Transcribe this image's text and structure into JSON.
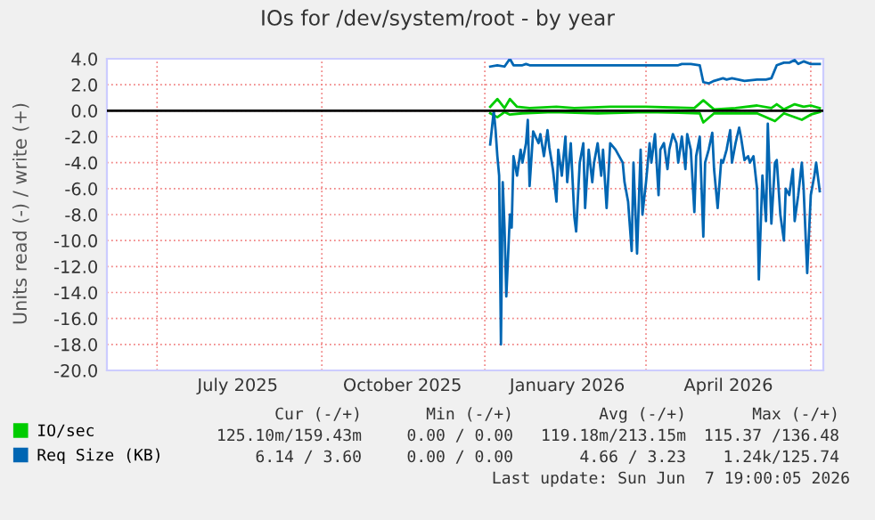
{
  "chart_data": {
    "type": "line",
    "title": "IOs for /dev/system/root - by year",
    "ylabel": "Units read (-) / write (+)",
    "xlim": [
      "2025-05-04",
      "2026-06-08"
    ],
    "xticks": [
      {
        "value": "2025-06-01",
        "label": null
      },
      {
        "value": "2025-07-16",
        "label": "July 2025"
      },
      {
        "value": "2025-09-01",
        "label": null
      },
      {
        "value": "2025-10-16",
        "label": "October 2025"
      },
      {
        "value": "2025-12-01",
        "label": null
      },
      {
        "value": "2026-01-16",
        "label": "January 2026"
      },
      {
        "value": "2026-03-01",
        "label": null
      },
      {
        "value": "2026-04-16",
        "label": "April 2026"
      },
      {
        "value": "2026-06-01",
        "label": null
      }
    ],
    "ylim": [
      -20,
      4
    ],
    "yticks": [
      {
        "value": 4,
        "label": "4.0"
      },
      {
        "value": 2,
        "label": "2.0"
      },
      {
        "value": 0,
        "label": "0.0"
      },
      {
        "value": -2,
        "label": "-2.0"
      },
      {
        "value": -4,
        "label": "-4.0"
      },
      {
        "value": -6,
        "label": "-6.0"
      },
      {
        "value": -8,
        "label": "-8.0"
      },
      {
        "value": -10,
        "label": "-10.0"
      },
      {
        "value": -12,
        "label": "-12.0"
      },
      {
        "value": -14,
        "label": "-14.0"
      },
      {
        "value": -16,
        "label": "-16.0"
      },
      {
        "value": -18,
        "label": "-18.0"
      },
      {
        "value": -20,
        "label": "-20.0"
      }
    ],
    "grid": true,
    "legend": "bottom",
    "marker": "none",
    "line_style": "solid",
    "ref_lines": [
      {
        "axis": "y",
        "value": 0,
        "label": null,
        "color": "#000000"
      }
    ],
    "series": [
      {
        "name": "IO/sec",
        "color": "#00cc00",
        "x": [
          "2025-12-04",
          "2025-12-08",
          "2025-12-12",
          "2025-12-15",
          "2025-12-19",
          "2025-12-26",
          "2026-01-10",
          "2026-01-20",
          "2026-02-09",
          "2026-03-01",
          "2026-03-28",
          "2026-04-02",
          "2026-04-08",
          "2026-04-20",
          "2026-05-02",
          "2026-05-10",
          "2026-05-13",
          "2026-05-17",
          "2026-05-23",
          "2026-05-28",
          "2026-06-01",
          "2026-06-06"
        ],
        "values": [
          0.3,
          0.9,
          0.2,
          0.9,
          0.3,
          0.2,
          0.3,
          0.2,
          0.3,
          0.3,
          0.2,
          0.8,
          0.1,
          0.2,
          0.4,
          0.2,
          0.5,
          0.1,
          0.5,
          0.3,
          0.4,
          0.2
        ]
      },
      {
        "color": "#00cc00",
        "x": [
          "2025-12-04",
          "2025-12-08",
          "2025-12-12",
          "2025-12-15",
          "2025-12-22",
          "2026-01-08",
          "2026-02-02",
          "2026-03-01",
          "2026-03-31",
          "2026-04-02",
          "2026-04-08",
          "2026-05-02",
          "2026-05-12",
          "2026-05-17",
          "2026-05-27",
          "2026-06-01",
          "2026-06-06"
        ],
        "values": [
          -0.2,
          -0.5,
          -0.1,
          -0.3,
          -0.2,
          -0.1,
          -0.2,
          -0.1,
          -0.2,
          -0.9,
          -0.2,
          -0.2,
          -0.8,
          -0.2,
          -0.7,
          -0.3,
          -0.1
        ]
      },
      {
        "name": "Req Size (KB)",
        "color": "#0066b3",
        "x": [
          "2025-12-04",
          "2025-12-08",
          "2025-12-12",
          "2025-12-15",
          "2025-12-17",
          "2025-12-22",
          "2025-12-24",
          "2025-12-26",
          "2026-02-02",
          "2026-03-19",
          "2026-03-21",
          "2026-03-26",
          "2026-03-31",
          "2026-04-02",
          "2026-04-05",
          "2026-04-08",
          "2026-04-13",
          "2026-04-15",
          "2026-04-18",
          "2026-04-25",
          "2026-05-02",
          "2026-05-07",
          "2026-05-10",
          "2026-05-13",
          "2026-05-17",
          "2026-05-20",
          "2026-05-23",
          "2026-05-25",
          "2026-05-28",
          "2026-06-01",
          "2026-06-06"
        ],
        "values": [
          3.4,
          3.5,
          3.4,
          4.0,
          3.5,
          3.5,
          3.6,
          3.5,
          3.5,
          3.5,
          3.6,
          3.6,
          3.5,
          2.2,
          2.1,
          2.3,
          2.5,
          2.4,
          2.5,
          2.3,
          2.4,
          2.4,
          2.5,
          3.5,
          3.7,
          3.7,
          3.9,
          3.6,
          3.8,
          3.6,
          3.6
        ]
      },
      {
        "color": "#0066b3",
        "x": [
          "2025-12-04",
          "2025-12-06",
          "2025-12-07",
          "2025-12-08",
          "2025-12-09",
          "2025-12-10",
          "2025-12-11",
          "2025-12-12",
          "2025-12-13",
          "2025-12-15",
          "2025-12-16",
          "2025-12-17",
          "2025-12-19",
          "2025-12-21",
          "2025-12-22",
          "2025-12-24",
          "2025-12-25",
          "2025-12-26",
          "2025-12-28",
          "2025-12-31",
          "2026-01-01",
          "2026-01-03",
          "2026-01-05",
          "2026-01-06",
          "2026-01-08",
          "2026-01-10",
          "2026-01-11",
          "2026-01-13",
          "2026-01-15",
          "2026-01-16",
          "2026-01-18",
          "2026-01-20",
          "2026-01-21",
          "2026-01-23",
          "2026-01-25",
          "2026-01-26",
          "2026-01-28",
          "2026-01-30",
          "2026-01-31",
          "2026-02-02",
          "2026-02-04",
          "2026-02-05",
          "2026-02-07",
          "2026-02-09",
          "2026-02-12",
          "2026-02-14",
          "2026-02-16",
          "2026-02-17",
          "2026-02-19",
          "2026-02-21",
          "2026-02-22",
          "2026-02-24",
          "2026-02-26",
          "2026-02-27",
          "2026-03-01",
          "2026-03-03",
          "2026-03-04",
          "2026-03-06",
          "2026-03-08",
          "2026-03-09",
          "2026-03-11",
          "2026-03-13",
          "2026-03-14",
          "2026-03-16",
          "2026-03-18",
          "2026-03-19",
          "2026-03-21",
          "2026-03-23",
          "2026-03-24",
          "2026-03-26",
          "2026-03-28",
          "2026-03-29",
          "2026-03-31",
          "2026-04-02",
          "2026-04-03",
          "2026-04-05",
          "2026-04-07",
          "2026-04-08",
          "2026-04-10",
          "2026-04-12",
          "2026-04-13",
          "2026-04-15",
          "2026-04-17",
          "2026-04-18",
          "2026-04-20",
          "2026-04-22",
          "2026-04-23",
          "2026-04-25",
          "2026-04-27",
          "2026-04-28",
          "2026-04-30",
          "2026-05-02",
          "2026-05-03",
          "2026-05-05",
          "2026-05-07",
          "2026-05-08",
          "2026-05-10",
          "2026-05-12",
          "2026-05-13",
          "2026-05-15",
          "2026-05-17",
          "2026-05-18",
          "2026-05-20",
          "2026-05-22",
          "2026-05-23",
          "2026-05-25",
          "2026-05-27",
          "2026-05-28",
          "2026-05-30",
          "2026-06-01",
          "2026-06-03",
          "2026-06-04",
          "2026-06-06"
        ],
        "values": [
          -2.6,
          0,
          -1.5,
          -3.5,
          -5,
          -18,
          -5.5,
          -9,
          -14.3,
          -8,
          -9,
          -3.5,
          -5,
          -3,
          -4,
          -2.5,
          -0.7,
          -5.8,
          -1.6,
          -2.5,
          -1.8,
          -3.5,
          -1.5,
          -2.8,
          -4.5,
          -7,
          -3,
          -5,
          -2,
          -5.5,
          -2.5,
          -8.2,
          -9.3,
          -4,
          -2.5,
          -7.5,
          -3,
          -5.5,
          -4,
          -2.5,
          -5,
          -3,
          -7.5,
          -2.5,
          -3,
          -3.5,
          -4,
          -5.5,
          -7,
          -10.8,
          -4,
          -11,
          -3,
          -8,
          -5.5,
          -2.5,
          -4,
          -1.8,
          -6.5,
          -3,
          -2.5,
          -4.5,
          -3,
          -1.8,
          -2.5,
          -4,
          -2,
          -4.5,
          -1.8,
          -3,
          -7.8,
          -3.5,
          -2,
          -9.7,
          -4,
          -3,
          -1.7,
          -4.5,
          -7.5,
          -3.8,
          -4,
          -3,
          -1.5,
          -4,
          -2.5,
          -1.3,
          -2,
          -3.8,
          -3.5,
          -4,
          -3.5,
          -6,
          -13,
          -5,
          -8.5,
          -1,
          -8.7,
          -4,
          -3.8,
          -8,
          -10,
          -6,
          -6.5,
          -4.5,
          -8.5,
          -6.5,
          -4,
          -6,
          -12.5,
          -6.5,
          -5,
          -4,
          -6.2
        ]
      }
    ],
    "annotations": [
      "Cur (-/+)",
      "Min (-/+)",
      "Avg (-/+)",
      "Max (-/+)",
      "125.10m/159.43m",
      "0.00 / 0.00",
      "119.18m/213.15m",
      "115.37 /136.48",
      "6.14 / 3.60",
      "0.00 / 0.00",
      "4.66 / 3.23",
      "1.24k/125.74",
      "Last update: Sun Jun  7 19:00:05 2026"
    ]
  }
}
